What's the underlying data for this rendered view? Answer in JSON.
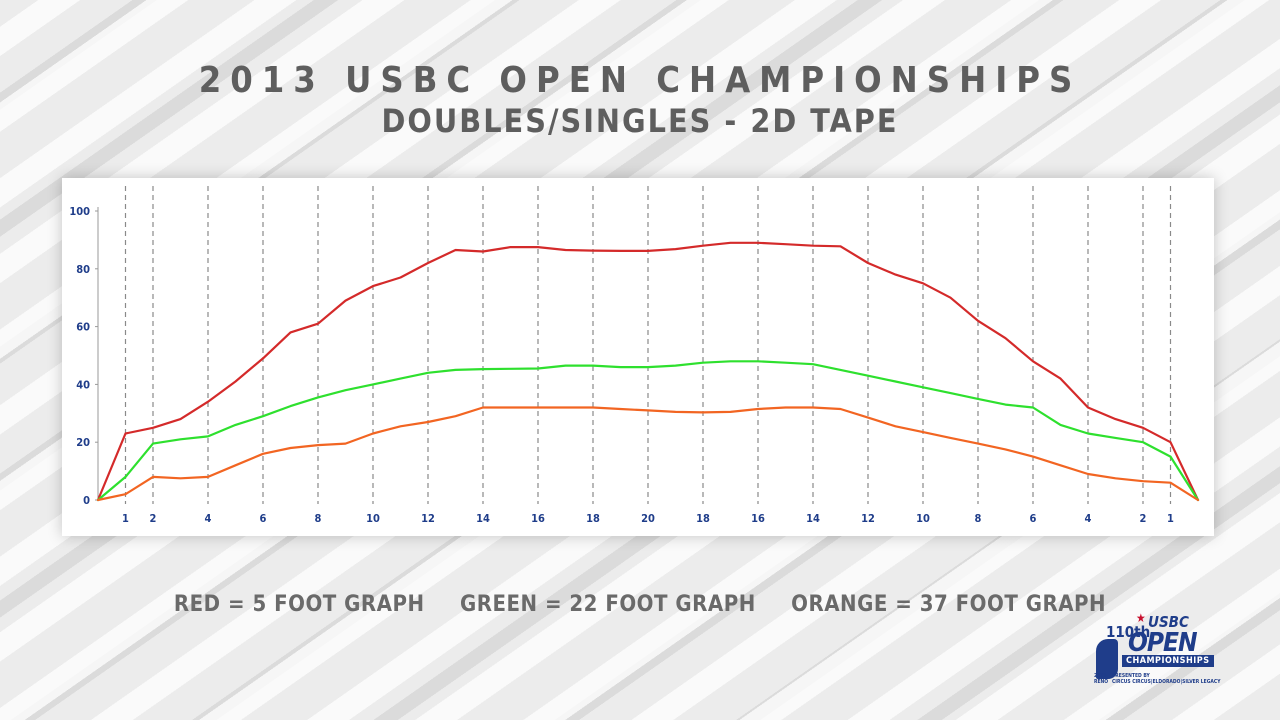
{
  "title_line1": "2013 USBC OPEN CHAMPIONSHIPS",
  "title_line2": "DOUBLES/SINGLES - 2D TAPE",
  "legend": {
    "red": "RED = 5 FOOT GRAPH",
    "green": "GREEN = 22 FOOT GRAPH",
    "orange": "ORANGE = 37 FOOT GRAPH"
  },
  "logo": {
    "brand": "USBC",
    "anniversary": "110th",
    "line1": "OPEN",
    "line2": "CHAMPIONSHIPS",
    "year": "2013",
    "city": "RENO",
    "presented_by": "PRESENTED BY",
    "sponsors": "CIRCUS CIRCUS|ELDORADO|SILVER LEGACY"
  },
  "colors": {
    "red": "#d42a2a",
    "green": "#2ee02e",
    "orange": "#f26522",
    "tick_text": "#1f3d8a",
    "grid": "#8a8a8a"
  },
  "chart_data": {
    "type": "line",
    "title": "2013 USBC OPEN CHAMPIONSHIPS DOUBLES/SINGLES - 2D TAPE",
    "xlabel": "",
    "ylabel": "",
    "ylim": [
      0,
      100
    ],
    "yticks": [
      0,
      20,
      40,
      60,
      80,
      100
    ],
    "x_range": [
      0,
      40
    ],
    "board_ticks": [
      {
        "x": 1,
        "label": "1"
      },
      {
        "x": 2,
        "label": "2"
      },
      {
        "x": 4,
        "label": "4"
      },
      {
        "x": 6,
        "label": "6"
      },
      {
        "x": 8,
        "label": "8"
      },
      {
        "x": 10,
        "label": "10"
      },
      {
        "x": 12,
        "label": "12"
      },
      {
        "x": 14,
        "label": "14"
      },
      {
        "x": 16,
        "label": "16"
      },
      {
        "x": 18,
        "label": "18"
      },
      {
        "x": 20,
        "label": "20"
      },
      {
        "x": 22,
        "label": "18"
      },
      {
        "x": 24,
        "label": "16"
      },
      {
        "x": 26,
        "label": "14"
      },
      {
        "x": 28,
        "label": "12"
      },
      {
        "x": 30,
        "label": "10"
      },
      {
        "x": 32,
        "label": "8"
      },
      {
        "x": 34,
        "label": "6"
      },
      {
        "x": 36,
        "label": "4"
      },
      {
        "x": 38,
        "label": "2"
      },
      {
        "x": 39,
        "label": "1"
      }
    ],
    "grid": true,
    "series": [
      {
        "name": "RED = 5 FOOT GRAPH",
        "color": "#d42a2a",
        "points": [
          [
            0,
            0
          ],
          [
            1,
            23
          ],
          [
            2,
            25
          ],
          [
            3,
            28
          ],
          [
            4,
            34
          ],
          [
            5,
            41
          ],
          [
            6,
            49
          ],
          [
            7,
            58
          ],
          [
            8,
            61
          ],
          [
            9,
            69
          ],
          [
            10,
            74
          ],
          [
            11,
            77
          ],
          [
            12,
            82
          ],
          [
            13,
            86.5
          ],
          [
            14,
            86
          ],
          [
            15,
            87.5
          ],
          [
            16,
            87.5
          ],
          [
            17,
            86.5
          ],
          [
            18,
            86.3
          ],
          [
            19,
            86.2
          ],
          [
            20,
            86.2
          ],
          [
            21,
            86.8
          ],
          [
            22,
            88
          ],
          [
            23,
            89
          ],
          [
            24,
            89
          ],
          [
            25,
            88.5
          ],
          [
            26,
            88
          ],
          [
            27,
            87.8
          ],
          [
            28,
            82
          ],
          [
            29,
            78
          ],
          [
            30,
            75
          ],
          [
            31,
            70
          ],
          [
            32,
            62
          ],
          [
            33,
            56
          ],
          [
            34,
            48
          ],
          [
            35,
            42
          ],
          [
            36,
            32
          ],
          [
            37,
            28
          ],
          [
            38,
            25
          ],
          [
            39,
            20
          ],
          [
            40,
            0
          ]
        ]
      },
      {
        "name": "GREEN = 22 FOOT GRAPH",
        "color": "#2ee02e",
        "points": [
          [
            0,
            0
          ],
          [
            1,
            8
          ],
          [
            2,
            19.5
          ],
          [
            3,
            21
          ],
          [
            4,
            22
          ],
          [
            5,
            26
          ],
          [
            6,
            29
          ],
          [
            7,
            32.5
          ],
          [
            8,
            35.5
          ],
          [
            9,
            38
          ],
          [
            10,
            40
          ],
          [
            11,
            42
          ],
          [
            12,
            44
          ],
          [
            13,
            45
          ],
          [
            14,
            45.3
          ],
          [
            15,
            45.4
          ],
          [
            16,
            45.5
          ],
          [
            17,
            46.5
          ],
          [
            18,
            46.5
          ],
          [
            19,
            46
          ],
          [
            20,
            46
          ],
          [
            21,
            46.5
          ],
          [
            22,
            47.5
          ],
          [
            23,
            48
          ],
          [
            24,
            48
          ],
          [
            25,
            47.5
          ],
          [
            26,
            47
          ],
          [
            27,
            45
          ],
          [
            28,
            43
          ],
          [
            29,
            41
          ],
          [
            30,
            39
          ],
          [
            31,
            37
          ],
          [
            32,
            35
          ],
          [
            33,
            33
          ],
          [
            34,
            32
          ],
          [
            35,
            26
          ],
          [
            36,
            23
          ],
          [
            37,
            21.5
          ],
          [
            38,
            20
          ],
          [
            39,
            15
          ],
          [
            40,
            0
          ]
        ]
      },
      {
        "name": "ORANGE = 37 FOOT GRAPH",
        "color": "#f26522",
        "points": [
          [
            0,
            0
          ],
          [
            1,
            2
          ],
          [
            2,
            8
          ],
          [
            3,
            7.5
          ],
          [
            4,
            8
          ],
          [
            5,
            12
          ],
          [
            6,
            16
          ],
          [
            7,
            18
          ],
          [
            8,
            19
          ],
          [
            9,
            19.5
          ],
          [
            10,
            23
          ],
          [
            11,
            25.5
          ],
          [
            12,
            27
          ],
          [
            13,
            29
          ],
          [
            14,
            32
          ],
          [
            15,
            32
          ],
          [
            16,
            32
          ],
          [
            17,
            32
          ],
          [
            18,
            32
          ],
          [
            19,
            31.5
          ],
          [
            20,
            31
          ],
          [
            21,
            30.5
          ],
          [
            22,
            30.3
          ],
          [
            23,
            30.5
          ],
          [
            24,
            31.5
          ],
          [
            25,
            32
          ],
          [
            26,
            32
          ],
          [
            27,
            31.5
          ],
          [
            28,
            28.5
          ],
          [
            29,
            25.5
          ],
          [
            30,
            23.5
          ],
          [
            31,
            21.5
          ],
          [
            32,
            19.5
          ],
          [
            33,
            17.5
          ],
          [
            34,
            15
          ],
          [
            35,
            12
          ],
          [
            36,
            9
          ],
          [
            37,
            7.5
          ],
          [
            38,
            6.5
          ],
          [
            39,
            6
          ],
          [
            40,
            0
          ]
        ]
      }
    ]
  }
}
